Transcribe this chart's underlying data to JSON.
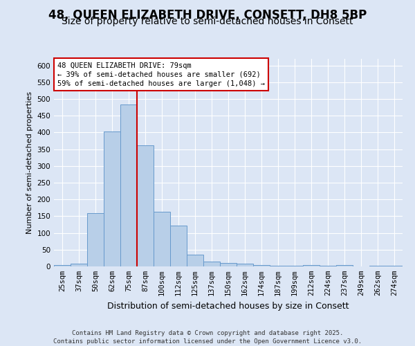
{
  "title": "48, QUEEN ELIZABETH DRIVE, CONSETT, DH8 5BP",
  "subtitle": "Size of property relative to semi-detached houses in Consett",
  "xlabel": "Distribution of semi-detached houses by size in Consett",
  "ylabel": "Number of semi-detached properties",
  "categories": [
    "25sqm",
    "37sqm",
    "50sqm",
    "62sqm",
    "75sqm",
    "87sqm",
    "100sqm",
    "112sqm",
    "125sqm",
    "137sqm",
    "150sqm",
    "162sqm",
    "174sqm",
    "187sqm",
    "199sqm",
    "212sqm",
    "224sqm",
    "237sqm",
    "249sqm",
    "262sqm",
    "274sqm"
  ],
  "values": [
    4,
    8,
    160,
    404,
    484,
    362,
    163,
    122,
    35,
    14,
    10,
    8,
    4,
    3,
    2,
    4,
    2,
    5,
    1,
    2,
    2
  ],
  "bar_color": "#b8cfe8",
  "bar_edge_color": "#6699cc",
  "bg_color": "#dce6f5",
  "plot_bg_color": "#dce6f5",
  "grid_color": "#ffffff",
  "annotation_box_text": "48 QUEEN ELIZABETH DRIVE: 79sqm\n← 39% of semi-detached houses are smaller (692)\n59% of semi-detached houses are larger (1,048) →",
  "vline_index": 4.5,
  "vline_color": "#cc0000",
  "footer_text": "Contains HM Land Registry data © Crown copyright and database right 2025.\nContains public sector information licensed under the Open Government Licence v3.0.",
  "ylim": [
    0,
    620
  ],
  "yticks": [
    0,
    50,
    100,
    150,
    200,
    250,
    300,
    350,
    400,
    450,
    500,
    550,
    600
  ],
  "title_fontsize": 12,
  "subtitle_fontsize": 10,
  "xlabel_fontsize": 9,
  "ylabel_fontsize": 8,
  "tick_fontsize": 7.5,
  "footer_fontsize": 6.5,
  "ann_fontsize": 7.5
}
